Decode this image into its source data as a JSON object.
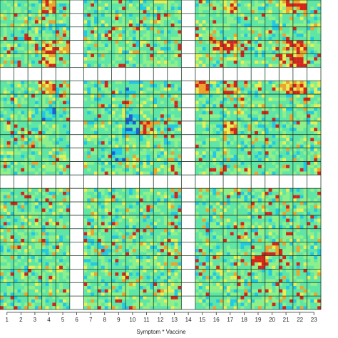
{
  "chart_data": {
    "type": "heatmap",
    "xlabel": "Symptom * Vaccine",
    "ylabel": "",
    "title": "",
    "x_tick_labels": [
      "1",
      "2",
      "3",
      "4",
      "5",
      "6",
      "7",
      "8",
      "9",
      "10",
      "11",
      "12",
      "13",
      "14",
      "15",
      "16",
      "17",
      "18",
      "19",
      "20",
      "21",
      "22",
      "23"
    ],
    "num_blocks": 23,
    "grid": true,
    "colormap": [
      "#1f5fd8",
      "#22c9e6",
      "#5fe6a6",
      "#8ff08a",
      "#e8ef55",
      "#f2a12a",
      "#d8231b"
    ],
    "blank_blocks": [
      6,
      14
    ],
    "hot_blocks": [
      [
        4,
        4
      ],
      [
        4,
        5
      ],
      [
        4,
        16
      ],
      [
        4,
        17
      ],
      [
        4,
        21
      ],
      [
        4,
        22
      ],
      [
        5,
        4
      ],
      [
        5,
        21
      ],
      [
        5,
        22
      ],
      [
        7,
        4
      ],
      [
        7,
        15
      ],
      [
        7,
        17
      ],
      [
        7,
        21
      ],
      [
        7,
        22
      ],
      [
        10,
        11
      ],
      [
        10,
        17
      ],
      [
        14,
        4
      ],
      [
        14,
        5
      ],
      [
        14,
        16
      ],
      [
        14,
        21
      ],
      [
        14,
        22
      ],
      [
        19,
        20
      ],
      [
        20,
        19
      ],
      [
        1,
        4
      ],
      [
        1,
        17
      ],
      [
        1,
        21
      ],
      [
        1,
        22
      ]
    ],
    "cool_blocks": [
      [
        1,
        14
      ],
      [
        7,
        14
      ],
      [
        7,
        10
      ],
      [
        9,
        4
      ],
      [
        9,
        10
      ],
      [
        9,
        14
      ],
      [
        10,
        10
      ],
      [
        10,
        14
      ],
      [
        12,
        9
      ]
    ]
  },
  "axis": {
    "x_title": "Symptom * Vaccine"
  }
}
